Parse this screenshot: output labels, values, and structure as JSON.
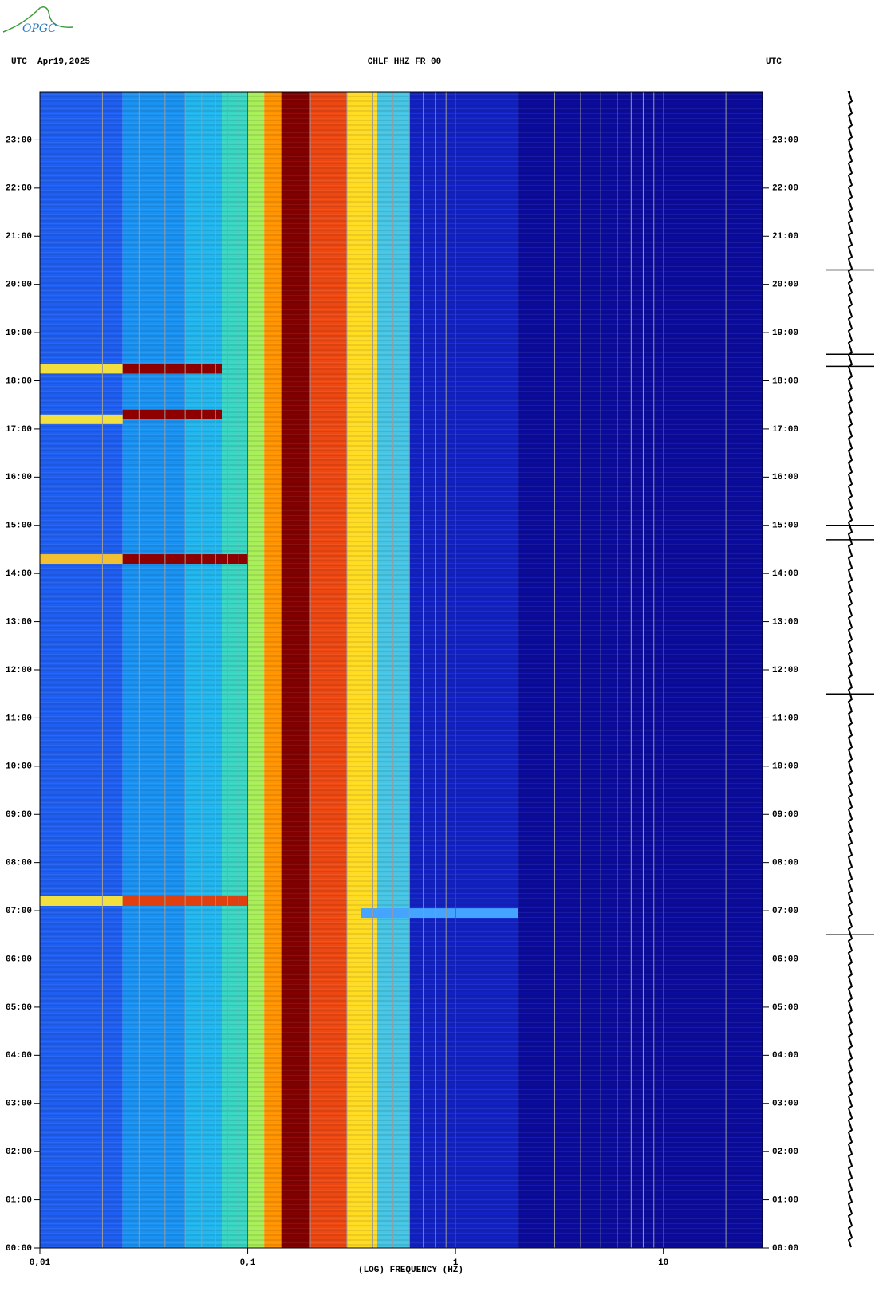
{
  "logo": "OPGC",
  "chart_data": {
    "type": "spectrogram",
    "header_left": "UTC  Apr19,2025",
    "title": "CHLF HHZ FR 00",
    "header_right": "UTC",
    "xlabel": "(LOG) FREQUENCY (HZ)",
    "xscale": "log",
    "xlim": [
      0.01,
      30
    ],
    "xticks": [
      {
        "value": 0.01,
        "label": "0,01"
      },
      {
        "value": 0.1,
        "label": "0,1"
      },
      1,
      10
    ],
    "xgrid": [
      0.02,
      0.03,
      0.04,
      0.05,
      0.06,
      0.07,
      0.08,
      0.09,
      0.2,
      0.3,
      0.4,
      0.5,
      0.6,
      0.7,
      0.8,
      0.9,
      2,
      3,
      4,
      5,
      6,
      7,
      8,
      9,
      20
    ],
    "grid_color": "#9a9a9a",
    "ylim": [
      0,
      24
    ],
    "yticks": [
      {
        "value": 0,
        "label": "00:00"
      },
      {
        "value": 1,
        "label": "01:00"
      },
      {
        "value": 2,
        "label": "02:00"
      },
      {
        "value": 3,
        "label": "03:00"
      },
      {
        "value": 4,
        "label": "04:00"
      },
      {
        "value": 5,
        "label": "05:00"
      },
      {
        "value": 6,
        "label": "06:00"
      },
      {
        "value": 7,
        "label": "07:00"
      },
      {
        "value": 8,
        "label": "08:00"
      },
      {
        "value": 9,
        "label": "09:00"
      },
      {
        "value": 10,
        "label": "10:00"
      },
      {
        "value": 11,
        "label": "11:00"
      },
      {
        "value": 12,
        "label": "12:00"
      },
      {
        "value": 13,
        "label": "13:00"
      },
      {
        "value": 14,
        "label": "14:00"
      },
      {
        "value": 15,
        "label": "15:00"
      },
      {
        "value": 16,
        "label": "16:00"
      },
      {
        "value": 17,
        "label": "17:00"
      },
      {
        "value": 18,
        "label": "18:00"
      },
      {
        "value": 19,
        "label": "19:00"
      },
      {
        "value": 20,
        "label": "20:00"
      },
      {
        "value": 21,
        "label": "21:00"
      },
      {
        "value": 22,
        "label": "22:00"
      },
      {
        "value": 23,
        "label": "23:00"
      }
    ],
    "bands": [
      {
        "from": 0.01,
        "to": 0.025,
        "color": "#1e5ef0"
      },
      {
        "from": 0.025,
        "to": 0.05,
        "color": "#1a92f2"
      },
      {
        "from": 0.05,
        "to": 0.075,
        "color": "#22b6ee"
      },
      {
        "from": 0.075,
        "to": 0.1,
        "color": "#3ad6c4"
      },
      {
        "from": 0.1,
        "to": 0.12,
        "color": "#a8ee58"
      },
      {
        "from": 0.12,
        "to": 0.145,
        "color": "#ff9400"
      },
      {
        "from": 0.145,
        "to": 0.2,
        "color": "#820000"
      },
      {
        "from": 0.2,
        "to": 0.3,
        "color": "#ee4812"
      },
      {
        "from": 0.3,
        "to": 0.42,
        "color": "#ffdc22"
      },
      {
        "from": 0.42,
        "to": 0.6,
        "color": "#46c6e4"
      },
      {
        "from": 0.6,
        "to": 2,
        "color": "#1222c2"
      },
      {
        "from": 2,
        "to": 30,
        "color": "#0b0c9c"
      }
    ],
    "events": [
      {
        "time": 18.25,
        "from": 0.01,
        "to": 0.025,
        "color": "#f2e040"
      },
      {
        "time": 18.25,
        "from": 0.025,
        "to": 0.075,
        "color": "#8e0000"
      },
      {
        "time": 17.3,
        "from": 0.025,
        "to": 0.075,
        "color": "#8e0000"
      },
      {
        "time": 17.2,
        "from": 0.01,
        "to": 0.025,
        "color": "#f2e040"
      },
      {
        "time": 14.3,
        "from": 0.01,
        "to": 0.025,
        "color": "#f2c030"
      },
      {
        "time": 14.3,
        "from": 0.025,
        "to": 0.1,
        "color": "#8e0000"
      },
      {
        "time": 7.2,
        "from": 0.01,
        "to": 0.025,
        "color": "#f2e040"
      },
      {
        "time": 7.2,
        "from": 0.025,
        "to": 0.1,
        "color": "#e04010"
      },
      {
        "time": 6.95,
        "from": 0.35,
        "to": 2,
        "color": "#44a4ff"
      }
    ],
    "trace_events": [
      20.3,
      18.55,
      18.3,
      15.0,
      14.7,
      11.5,
      6.5
    ],
    "trace_color": "#000000"
  }
}
